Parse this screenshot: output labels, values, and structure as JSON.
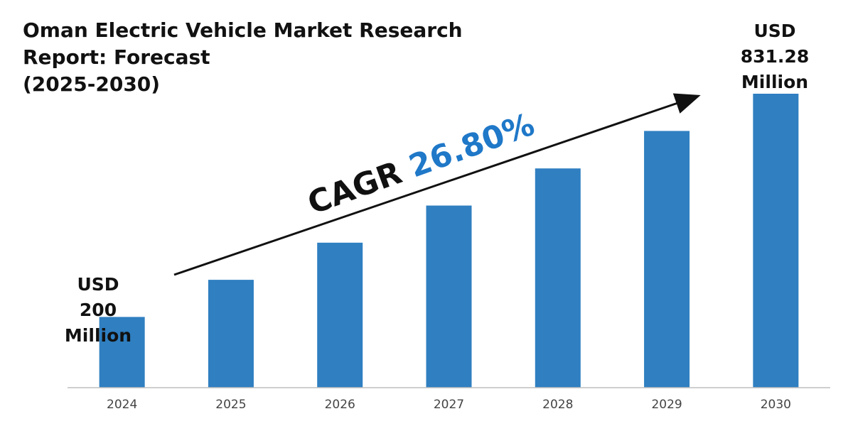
{
  "chart_data": {
    "type": "bar",
    "title_lines": [
      "Oman Electric Vehicle Market Research",
      "Report: Forecast",
      "(2025-2030)"
    ],
    "categories": [
      "2024",
      "2025",
      "2026",
      "2027",
      "2028",
      "2029",
      "2030"
    ],
    "values": [
      200,
      305,
      410,
      515,
      620,
      726,
      831.28
    ],
    "start_callout": [
      "USD",
      "200",
      "Million"
    ],
    "end_callout": [
      "USD",
      "831.28",
      "Million"
    ],
    "cagr_label": "CAGR",
    "cagr_value": "26.80%",
    "bar_color": "#2f7fc1",
    "cagr_value_color": "#1f78c8",
    "axis_color": "#bfbfbf",
    "arrow_color": "#111111",
    "ylim": [
      0,
      831.28
    ],
    "grid": false,
    "legend": "none"
  }
}
